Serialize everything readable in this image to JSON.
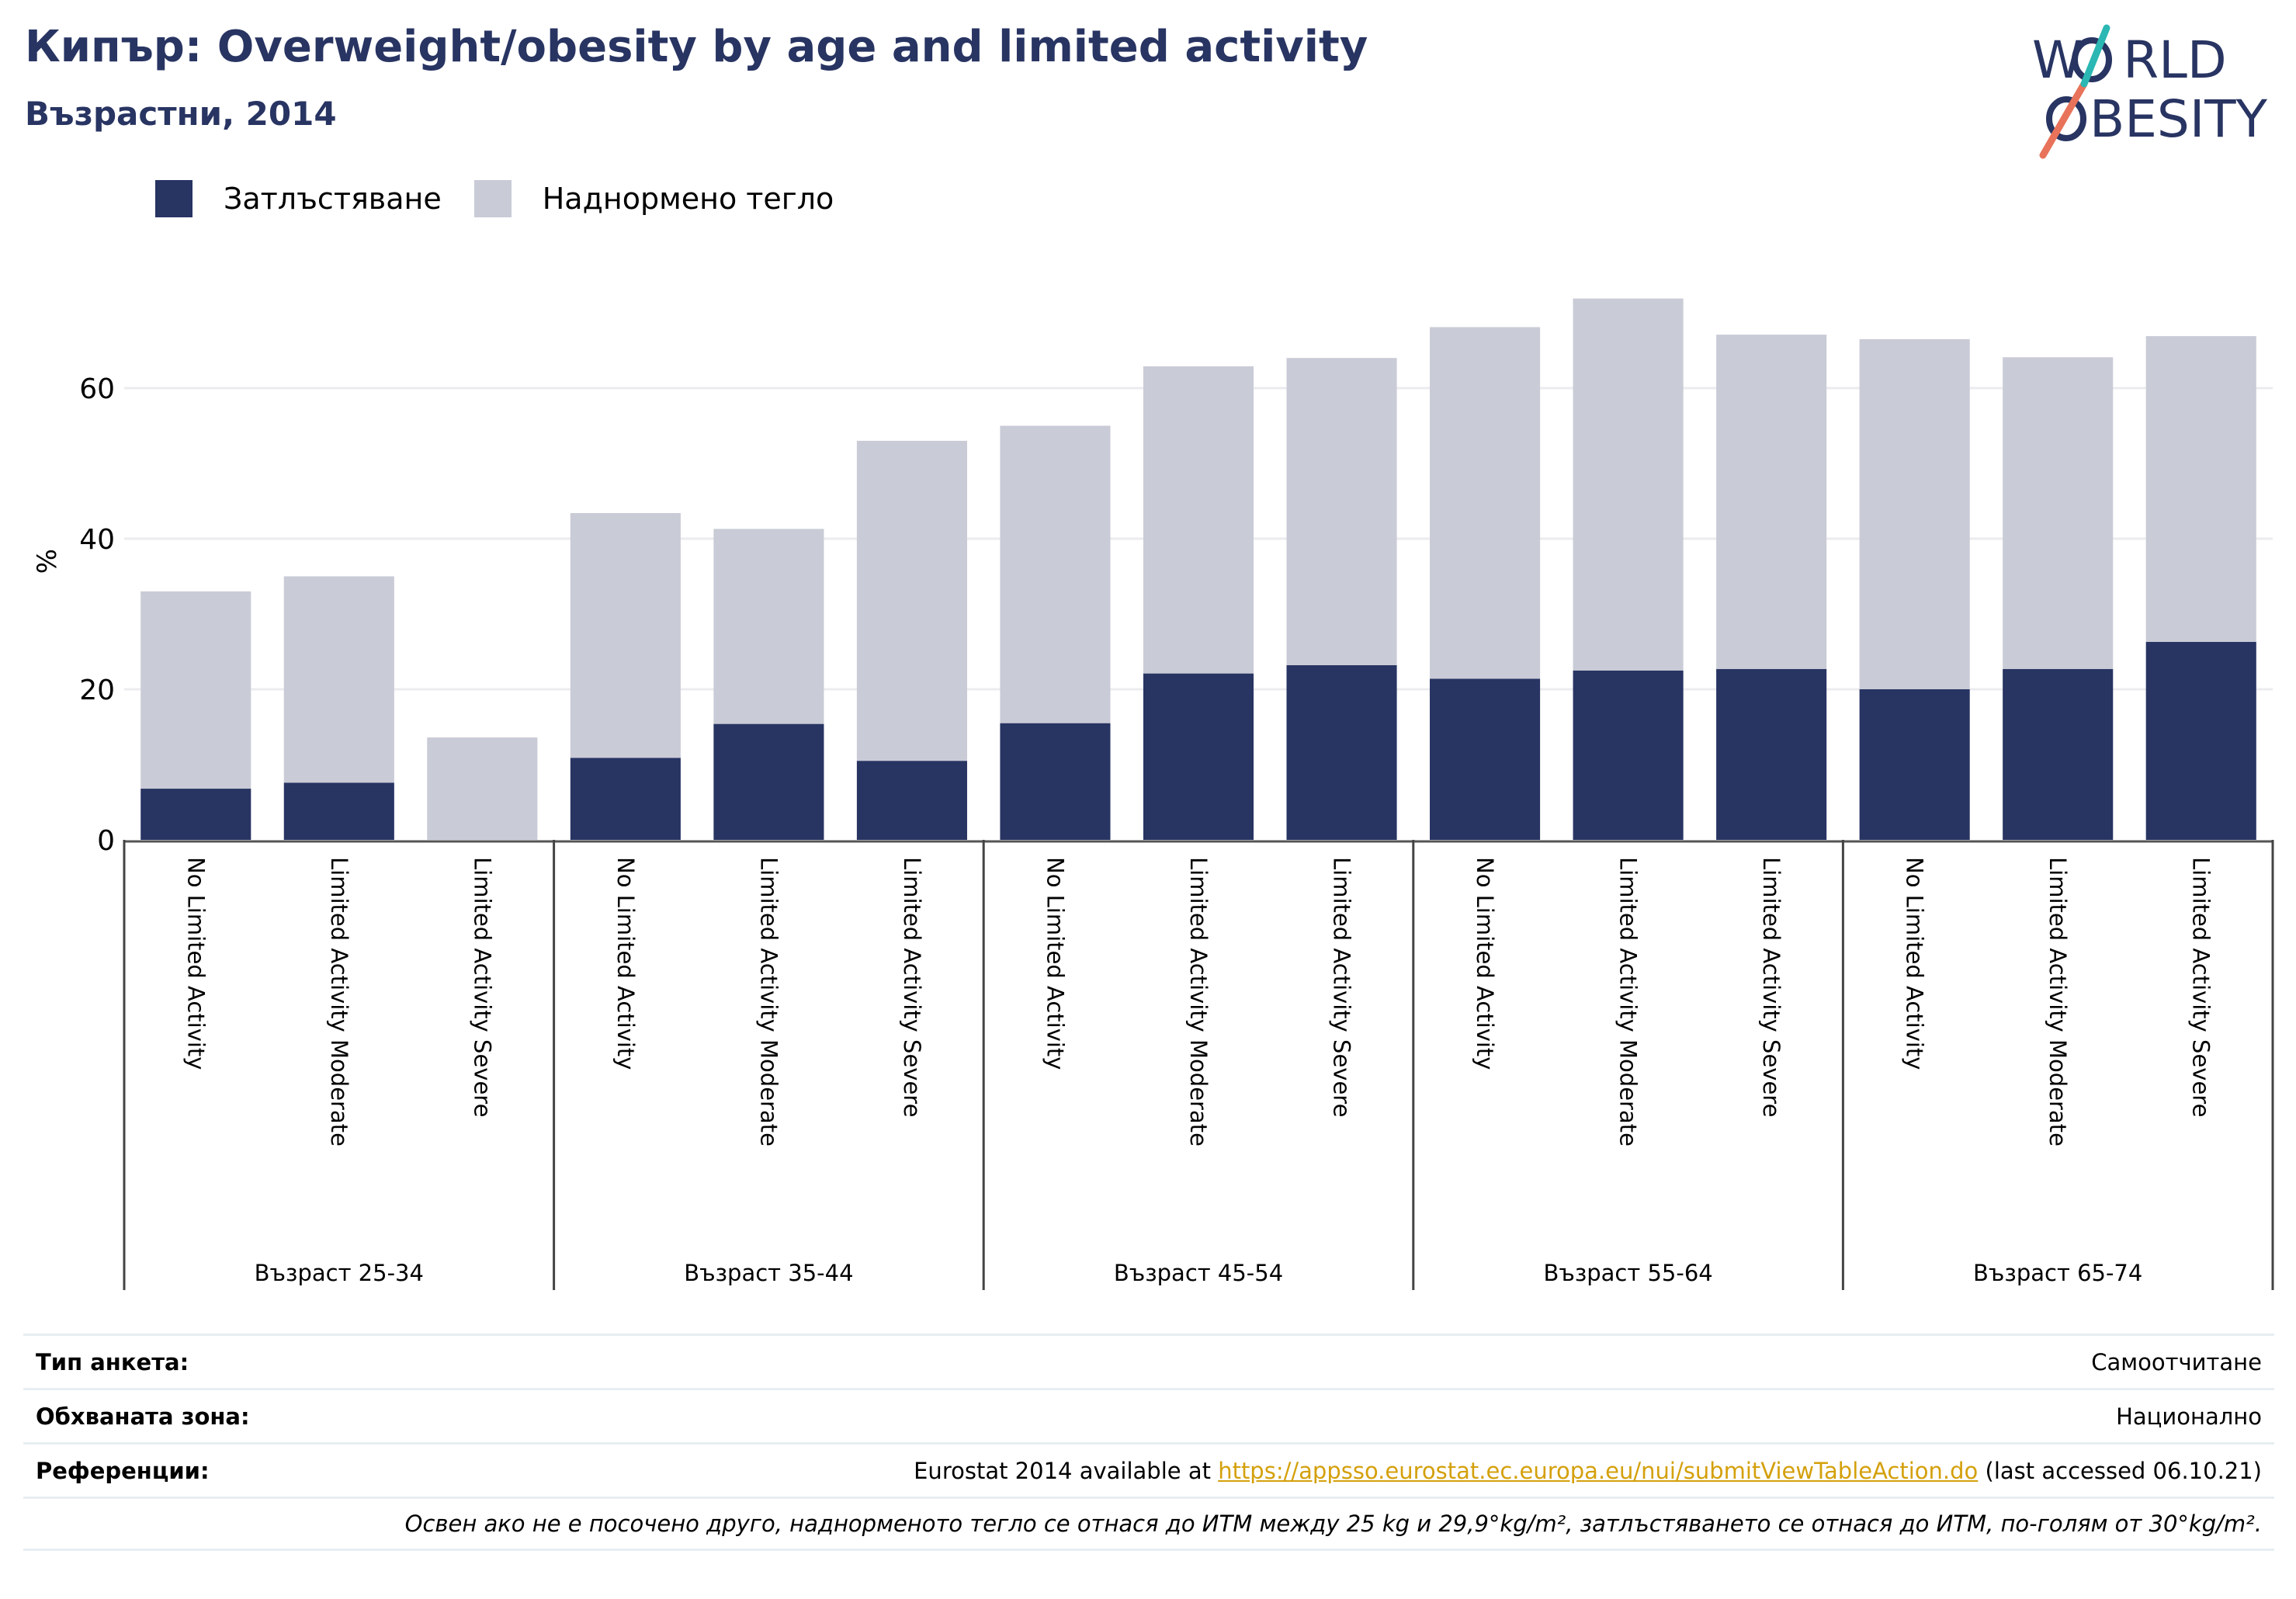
{
  "header": {
    "title": "Кипър: Overweight/obesity by age and limited activity",
    "subtitle": "Възрастни, 2014"
  },
  "logo": {
    "line1_pre": "W",
    "line1_post": "RLD",
    "line2_pre": "",
    "line2_post": "BESITY",
    "slash_color": "#e8735a",
    "accent_color": "#2bb7b3",
    "text_color": "#283462"
  },
  "legend": [
    {
      "label": "Затлъстяване",
      "color": "#283462"
    },
    {
      "label": "Наднормено тегло",
      "color": "#c9cbd6"
    }
  ],
  "chart_data": {
    "type": "bar",
    "stacked": true,
    "ylabel": "%",
    "ylim": [
      0,
      75
    ],
    "yticks": [
      0,
      20,
      40,
      60
    ],
    "grid": true,
    "legend_position": "top-left",
    "groups": [
      "Възраст 25-34",
      "Възраст 35-44",
      "Възраст 45-54",
      "Възраст 55-64",
      "Възраст 65-74"
    ],
    "subcategories": [
      "No Limited Activity",
      "Limited Activity Moderate",
      "Limited Activity Severe"
    ],
    "series": [
      {
        "name": "Затлъстяване",
        "color": "#283462",
        "values": [
          6.8,
          7.6,
          0,
          10.9,
          15.4,
          10.5,
          15.5,
          22.1,
          23.2,
          21.4,
          22.5,
          22.7,
          20.0,
          22.7,
          26.3
        ]
      },
      {
        "name": "Наднормено тегло",
        "color": "#c9cbd6",
        "values": [
          26.2,
          27.4,
          13.6,
          32.5,
          25.9,
          42.5,
          39.5,
          40.8,
          40.8,
          46.7,
          49.4,
          44.4,
          46.5,
          41.4,
          40.6
        ]
      }
    ]
  },
  "footer": {
    "survey_type_label": "Тип анкета:",
    "survey_type_value": "Самоотчитане",
    "coverage_label": "Обхваната зона:",
    "coverage_value": "Национално",
    "references_label": "Референции:",
    "references_prefix": "Eurostat 2014 available at ",
    "references_link": "https://appsso.eurostat.ec.europa.eu/nui/submitViewTableAction.do",
    "references_suffix": " (last accessed 06.10.21)",
    "note": "Освен ако не е посочено друго, наднорменото тегло се отнася до ИТМ между 25 kg и 29,9°kg/m², затлъстяването се отнася до ИТМ, по-голям от 30°kg/m²."
  }
}
